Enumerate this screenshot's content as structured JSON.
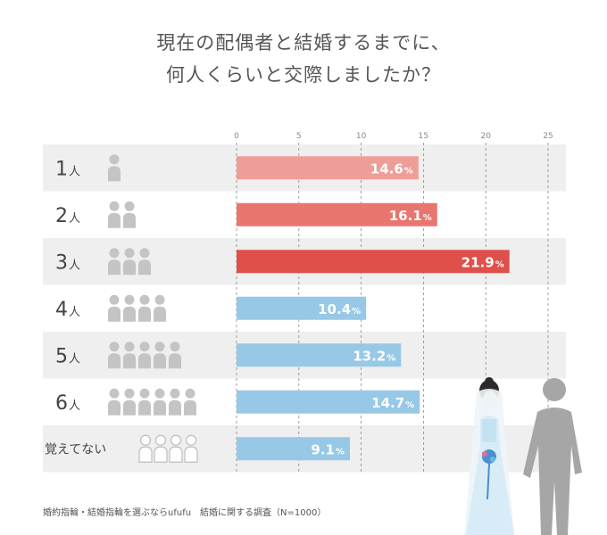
{
  "title_line1": "現在の配偶者と結婚するまでに、",
  "title_line2": "何人くらいと交際しましたか？",
  "source_note": "婚約指輪・結婚指輪を選ぶならufufu　結婚に関する調査（N=1000）",
  "colors": {
    "row_shade": "#efefef",
    "pink_light": "#ef9d97",
    "pink_mid": "#e8766f",
    "red": "#e0504a",
    "blue": "#97c8e6",
    "figure_gray": "#c4c4c4",
    "grid": "#8a8a8a"
  },
  "chart_data": {
    "type": "bar",
    "orientation": "horizontal",
    "xlim": [
      0,
      25
    ],
    "xticks": [
      0,
      5,
      10,
      15,
      20,
      25
    ],
    "grid": true,
    "categories": [
      {
        "num": "1",
        "unit": "人",
        "people": 1
      },
      {
        "num": "2",
        "unit": "人",
        "people": 2
      },
      {
        "num": "3",
        "unit": "人",
        "people": 3
      },
      {
        "num": "4",
        "unit": "人",
        "people": 4
      },
      {
        "num": "5",
        "unit": "人",
        "people": 5
      },
      {
        "num": "6",
        "unit": "人",
        "people": 6
      },
      {
        "num": "覚えてない",
        "unit": "",
        "people": 4,
        "outline": true
      }
    ],
    "values": [
      14.6,
      16.1,
      21.9,
      10.4,
      13.2,
      14.7,
      9.1
    ],
    "value_labels": [
      "14.6",
      "16.1",
      "21.9",
      "10.4",
      "13.2",
      "14.7",
      "9.1"
    ],
    "value_suffix": "%",
    "bar_colors": [
      "pink_light",
      "pink_mid",
      "red",
      "blue",
      "blue",
      "blue",
      "blue"
    ]
  }
}
